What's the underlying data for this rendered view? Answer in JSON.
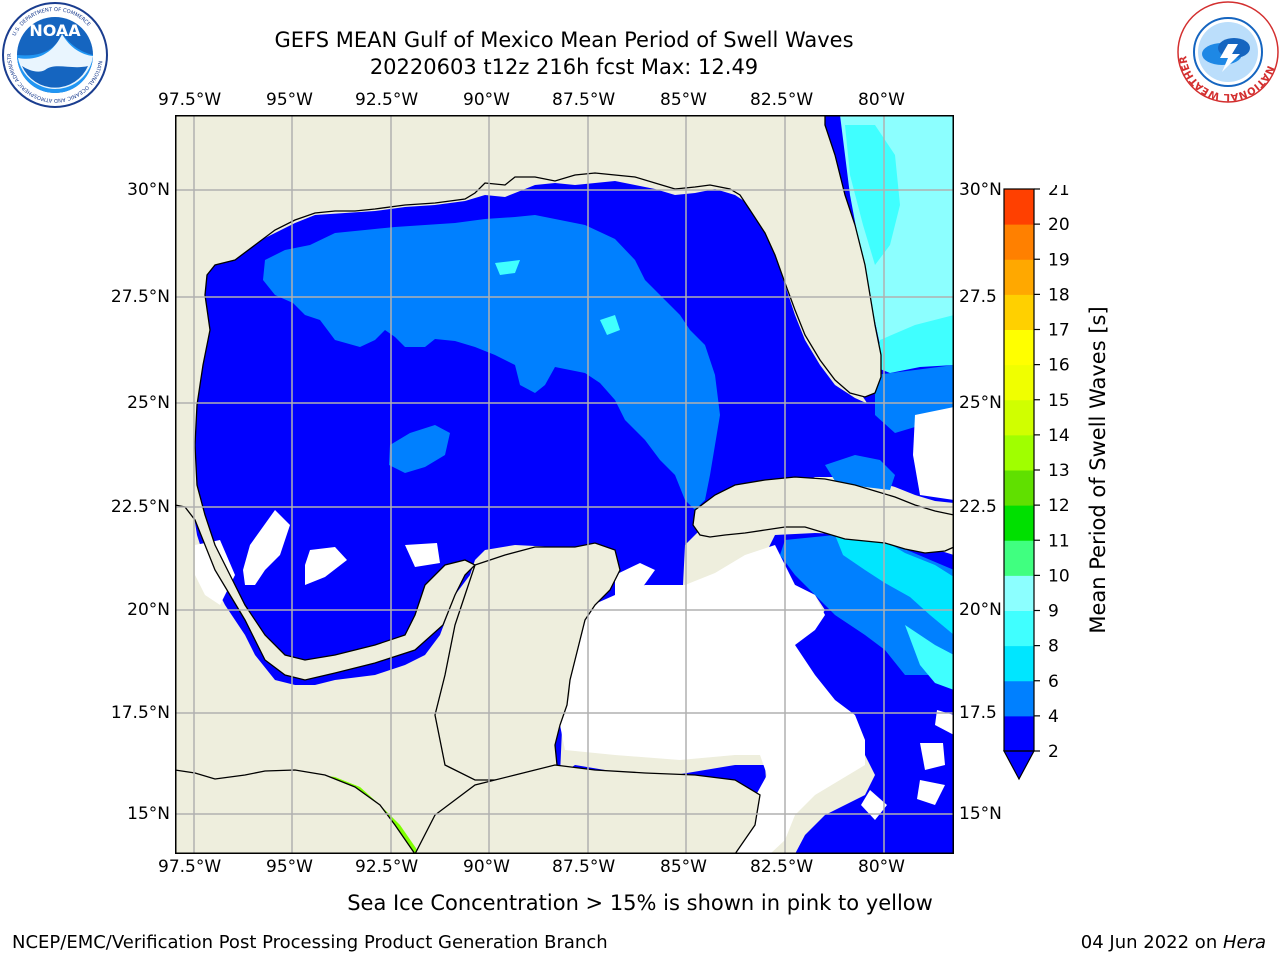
{
  "title": {
    "line1": "GEFS MEAN Gulf of Mexico Mean Period of Swell Waves",
    "line2": "20220603 t12z 216h fcst   Max: 12.49"
  },
  "map": {
    "lon_labels": [
      "97.5°W",
      "95°W",
      "92.5°W",
      "90°W",
      "87.5°W",
      "85°W",
      "82.5°W",
      "80°W"
    ],
    "lat_labels_left": [
      "30°N",
      "27.5°N",
      "25°N",
      "22.5°N",
      "20°N",
      "17.5°N",
      "15°N"
    ],
    "lat_labels_right": [
      "30°N",
      "27.5",
      "25°N",
      "22.5",
      "20°N",
      "17.5",
      "15°N"
    ],
    "colors": {
      "land": "#eeeedd",
      "ocean_2_4": "#0000ff",
      "period_4_6": "#0080ff",
      "period_6_8": "#00ffff",
      "period_8_9": "#8cffff",
      "period_10_12": "#7fff00",
      "period_12_13": "#c8ff00",
      "grid": "#b0b0b0",
      "coast": "#000000"
    }
  },
  "colorbar": {
    "label": "Mean Period of Swell Waves [s]",
    "ticks": [
      "2",
      "4",
      "6",
      "8",
      "9",
      "10",
      "11",
      "12",
      "13",
      "14",
      "15",
      "16",
      "17",
      "18",
      "19",
      "20",
      "21"
    ],
    "colors": [
      "#0000ff",
      "#0080ff",
      "#00e6ff",
      "#40ffff",
      "#8cffff",
      "#40ff80",
      "#00e000",
      "#60e000",
      "#a0ff00",
      "#d0ff00",
      "#f0ff00",
      "#ffff00",
      "#ffd000",
      "#ffa800",
      "#ff8000",
      "#ff4000",
      "#ff0000"
    ]
  },
  "caption": "Sea Ice Concentration > 15% is shown in pink to yellow",
  "footer": {
    "left": "NCEP/EMC/Verification Post Processing Product Generation Branch",
    "right_date": "04 Jun 2022 on ",
    "right_host": "Hera"
  },
  "logos": {
    "left": "NOAA",
    "left_ring": "NATIONAL OCEANIC AND ATMOSPHERIC ADMINISTRATION",
    "left_ring_bottom": "U.S. DEPARTMENT OF COMMERCE",
    "right_ring": "NATIONAL WEATHER SERVICE"
  }
}
